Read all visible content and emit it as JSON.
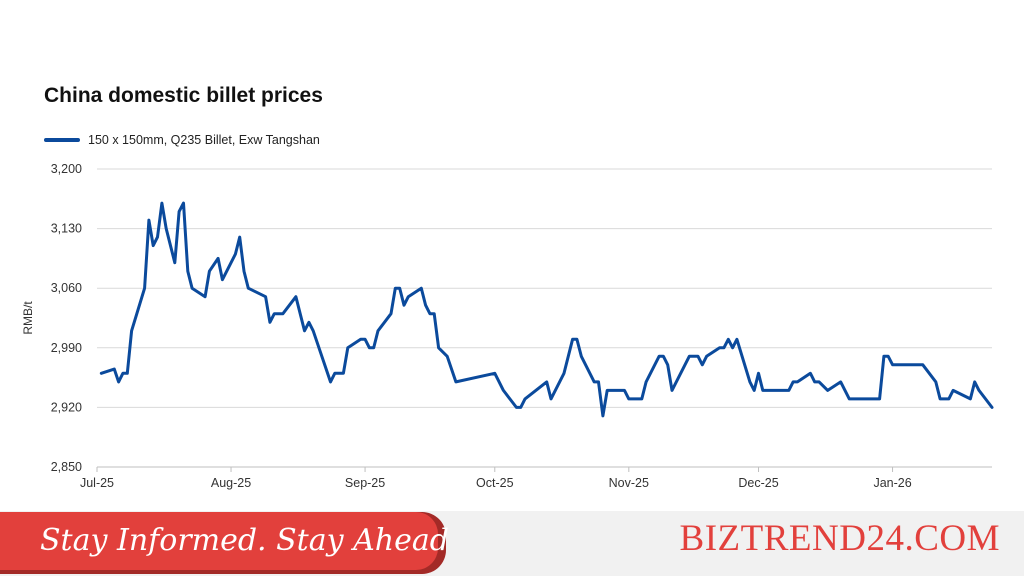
{
  "footer": {
    "tagline": "Stay Informed. Stay Ahead",
    "brand": "BIZTREND24.COM"
  },
  "colors": {
    "line": "#0b4a9c",
    "banner": "#e2403c",
    "brand": "#e2403c",
    "grid": "#d9d9d9"
  },
  "chart_data": {
    "type": "line",
    "title": "China domestic billet prices",
    "xlabel": "",
    "ylabel": "RMB/t",
    "ylim": [
      2850,
      3200
    ],
    "yticks": [
      2850,
      2920,
      2990,
      3060,
      3130,
      3200
    ],
    "ytick_labels": [
      "2,850",
      "2,920",
      "2,990",
      "3,060",
      "3,130",
      "3,200"
    ],
    "xticks": [
      "2025-07-01",
      "2025-08-01",
      "2025-09-01",
      "2025-10-01",
      "2025-11-01",
      "2025-12-01",
      "2026-01-01"
    ],
    "xtick_labels": [
      "Jul-25",
      "Aug-25",
      "Sep-25",
      "Oct-25",
      "Nov-25",
      "Dec-25",
      "Jan-26"
    ],
    "xlim": [
      "2025-07-01",
      "2026-01-24"
    ],
    "grid": "horizontal",
    "legend_position": "top-left",
    "series": [
      {
        "name": "150 x 150mm, Q235 Billet, Exw Tangshan",
        "points": [
          [
            "2025-07-02",
            2960
          ],
          [
            "2025-07-05",
            2965
          ],
          [
            "2025-07-06",
            2950
          ],
          [
            "2025-07-07",
            2960
          ],
          [
            "2025-07-08",
            2960
          ],
          [
            "2025-07-09",
            3010
          ],
          [
            "2025-07-12",
            3060
          ],
          [
            "2025-07-13",
            3140
          ],
          [
            "2025-07-14",
            3110
          ],
          [
            "2025-07-15",
            3120
          ],
          [
            "2025-07-16",
            3160
          ],
          [
            "2025-07-17",
            3130
          ],
          [
            "2025-07-19",
            3090
          ],
          [
            "2025-07-20",
            3150
          ],
          [
            "2025-07-21",
            3160
          ],
          [
            "2025-07-22",
            3080
          ],
          [
            "2025-07-23",
            3060
          ],
          [
            "2025-07-26",
            3050
          ],
          [
            "2025-07-27",
            3080
          ],
          [
            "2025-07-29",
            3095
          ],
          [
            "2025-07-30",
            3070
          ],
          [
            "2025-08-02",
            3100
          ],
          [
            "2025-08-03",
            3120
          ],
          [
            "2025-08-04",
            3080
          ],
          [
            "2025-08-05",
            3060
          ],
          [
            "2025-08-09",
            3050
          ],
          [
            "2025-08-10",
            3020
          ],
          [
            "2025-08-11",
            3030
          ],
          [
            "2025-08-13",
            3030
          ],
          [
            "2025-08-16",
            3050
          ],
          [
            "2025-08-18",
            3010
          ],
          [
            "2025-08-19",
            3020
          ],
          [
            "2025-08-20",
            3010
          ],
          [
            "2025-08-24",
            2950
          ],
          [
            "2025-08-25",
            2960
          ],
          [
            "2025-08-27",
            2960
          ],
          [
            "2025-08-28",
            2990
          ],
          [
            "2025-08-31",
            3000
          ],
          [
            "2025-09-01",
            3000
          ],
          [
            "2025-09-02",
            2990
          ],
          [
            "2025-09-03",
            2990
          ],
          [
            "2025-09-04",
            3010
          ],
          [
            "2025-09-07",
            3030
          ],
          [
            "2025-09-08",
            3060
          ],
          [
            "2025-09-09",
            3060
          ],
          [
            "2025-09-10",
            3040
          ],
          [
            "2025-09-11",
            3050
          ],
          [
            "2025-09-14",
            3060
          ],
          [
            "2025-09-15",
            3040
          ],
          [
            "2025-09-16",
            3030
          ],
          [
            "2025-09-17",
            3030
          ],
          [
            "2025-09-18",
            2990
          ],
          [
            "2025-09-20",
            2980
          ],
          [
            "2025-09-22",
            2950
          ],
          [
            "2025-10-01",
            2960
          ],
          [
            "2025-10-03",
            2940
          ],
          [
            "2025-10-06",
            2920
          ],
          [
            "2025-10-07",
            2920
          ],
          [
            "2025-10-08",
            2930
          ],
          [
            "2025-10-13",
            2950
          ],
          [
            "2025-10-14",
            2930
          ],
          [
            "2025-10-17",
            2960
          ],
          [
            "2025-10-18",
            2980
          ],
          [
            "2025-10-19",
            3000
          ],
          [
            "2025-10-20",
            3000
          ],
          [
            "2025-10-21",
            2980
          ],
          [
            "2025-10-24",
            2950
          ],
          [
            "2025-10-25",
            2950
          ],
          [
            "2025-10-26",
            2910
          ],
          [
            "2025-10-27",
            2940
          ],
          [
            "2025-10-31",
            2940
          ],
          [
            "2025-11-01",
            2930
          ],
          [
            "2025-11-04",
            2930
          ],
          [
            "2025-11-05",
            2950
          ],
          [
            "2025-11-08",
            2980
          ],
          [
            "2025-11-09",
            2980
          ],
          [
            "2025-11-10",
            2970
          ],
          [
            "2025-11-11",
            2940
          ],
          [
            "2025-11-15",
            2980
          ],
          [
            "2025-11-17",
            2980
          ],
          [
            "2025-11-18",
            2970
          ],
          [
            "2025-11-19",
            2980
          ],
          [
            "2025-11-22",
            2990
          ],
          [
            "2025-11-23",
            2990
          ],
          [
            "2025-11-24",
            3000
          ],
          [
            "2025-11-25",
            2990
          ],
          [
            "2025-11-26",
            3000
          ],
          [
            "2025-11-29",
            2950
          ],
          [
            "2025-11-30",
            2940
          ],
          [
            "2025-12-01",
            2960
          ],
          [
            "2025-12-02",
            2940
          ],
          [
            "2025-12-08",
            2940
          ],
          [
            "2025-12-09",
            2950
          ],
          [
            "2025-12-10",
            2950
          ],
          [
            "2025-12-13",
            2960
          ],
          [
            "2025-12-14",
            2950
          ],
          [
            "2025-12-15",
            2950
          ],
          [
            "2025-12-17",
            2940
          ],
          [
            "2025-12-20",
            2950
          ],
          [
            "2025-12-22",
            2930
          ],
          [
            "2025-12-29",
            2930
          ],
          [
            "2025-12-30",
            2980
          ],
          [
            "2025-12-31",
            2980
          ],
          [
            "2026-01-01",
            2970
          ],
          [
            "2026-01-08",
            2970
          ],
          [
            "2026-01-11",
            2950
          ],
          [
            "2026-01-12",
            2930
          ],
          [
            "2026-01-14",
            2930
          ],
          [
            "2026-01-15",
            2940
          ],
          [
            "2026-01-19",
            2930
          ],
          [
            "2026-01-20",
            2950
          ],
          [
            "2026-01-21",
            2940
          ],
          [
            "2026-01-24",
            2920
          ]
        ]
      }
    ]
  }
}
